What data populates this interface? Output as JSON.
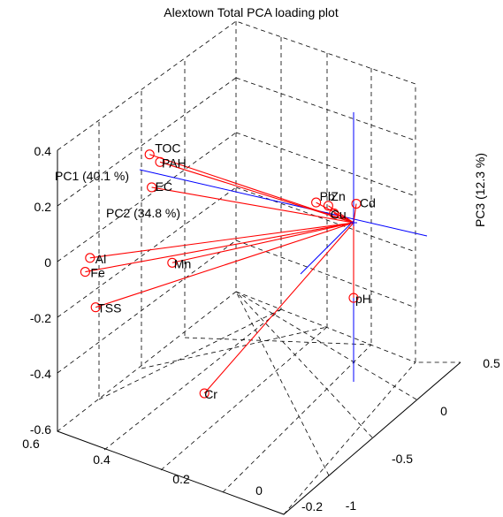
{
  "chart_data": {
    "type": "scatter",
    "title": "Alextown Total PCA loading plot",
    "xlabel": "PC1  (40.1 %)",
    "ylabel": "PC2  (34.8 %)",
    "zlabel": "PC3  (12.3 %)",
    "xlim": [
      -1,
      0.5
    ],
    "ylim": [
      -0.2,
      0.6
    ],
    "zlim": [
      -0.6,
      0.4
    ],
    "x_ticks": [
      "-1",
      "-0.5",
      "0",
      "0.5"
    ],
    "y_ticks": [
      "-0.2",
      "0",
      "0.2",
      "0.4",
      "0.6"
    ],
    "z_ticks": [
      "-0.6",
      "-0.4",
      "-0.2",
      "0",
      "0.2",
      "0.4"
    ],
    "grid": true,
    "origin_marker": "+",
    "points": [
      {
        "label": "TOC",
        "x": -0.31,
        "y": 0.37,
        "z": 0.33
      },
      {
        "label": "PAH",
        "x": -0.3,
        "y": 0.35,
        "z": 0.3
      },
      {
        "label": "EC",
        "x": -0.34,
        "y": 0.36,
        "z": 0.22
      },
      {
        "label": "Pb",
        "x": -0.1,
        "y": 0.06,
        "z": 0.1
      },
      {
        "label": "Zn",
        "x": -0.07,
        "y": 0.04,
        "z": 0.08
      },
      {
        "label": "Cu",
        "x": -0.06,
        "y": 0.03,
        "z": 0.05
      },
      {
        "label": "Cd",
        "x": 0.03,
        "y": 0.0,
        "z": 0.06
      },
      {
        "label": "Al",
        "x": -0.39,
        "y": 0.48,
        "z": -0.02
      },
      {
        "label": "Fe",
        "x": -0.39,
        "y": 0.49,
        "z": -0.07
      },
      {
        "label": "Mn",
        "x": -0.27,
        "y": 0.33,
        "z": -0.07
      },
      {
        "label": "TSS",
        "x": -0.38,
        "y": 0.47,
        "z": -0.2
      },
      {
        "label": "pH",
        "x": 0.0,
        "y": 0.0,
        "z": -0.27
      },
      {
        "label": "Cr",
        "x": -0.23,
        "y": 0.27,
        "z": -0.55
      }
    ],
    "colors": {
      "points": "#ff0000",
      "vectors": "#ff0000",
      "axes": "#0000ff"
    }
  }
}
